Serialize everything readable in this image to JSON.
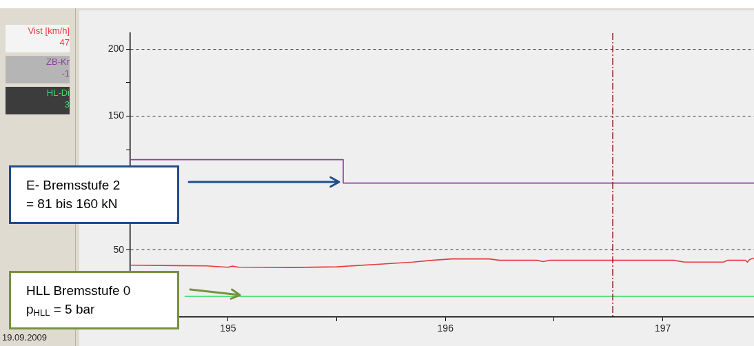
{
  "chart_data": {
    "type": "line",
    "xlim": [
      194.55,
      197.42
    ],
    "xticks": [
      195,
      {
        "value": 195.5,
        "label": null
      },
      196,
      {
        "value": 196.5,
        "label": null
      },
      197
    ],
    "ylim": [
      0,
      212
    ],
    "yticks": [
      {
        "value": 25,
        "label": null
      },
      50,
      {
        "value": 75,
        "label": null
      },
      {
        "value": 100,
        "label": null
      },
      {
        "value": 125,
        "label": null
      },
      150,
      {
        "value": 175,
        "label": null
      },
      200
    ],
    "grid": "y",
    "legend": "left",
    "series": [
      {
        "name": "Vist [km/h]",
        "color": "#e8383d",
        "x": [
          194.55,
          194.9,
          195.0,
          195.02,
          195.05,
          195.3,
          195.5,
          195.7,
          195.85,
          195.95,
          196.03,
          196.2,
          196.25,
          196.42,
          196.45,
          196.48,
          196.9,
          197.05,
          197.1,
          197.28,
          197.3,
          197.38,
          197.39,
          197.4,
          197.42
        ],
        "values": [
          38.7,
          38.2,
          37.2,
          38,
          37.2,
          37,
          37.5,
          39.5,
          41,
          42.5,
          43.4,
          43.4,
          42.4,
          42.4,
          41.4,
          42.4,
          42.4,
          42.4,
          41,
          41,
          42.4,
          42.4,
          41,
          43,
          44
        ]
      },
      {
        "name": "ZB-Kr",
        "type": "step",
        "color": "#8e3fa0",
        "x": [
          194.55,
          195.53,
          197.42
        ],
        "values": [
          117.5,
          100,
          100
        ]
      },
      {
        "name": "HL-Di",
        "color": "#3ddc6e",
        "x": [
          194.8,
          197.42
        ],
        "values": [
          15.5,
          15.5
        ]
      }
    ],
    "ref_lines": [
      {
        "axis": "x",
        "value": 196.77,
        "color": "#8b0000",
        "line_style": "dashed"
      }
    ],
    "annotations": [
      "E- Bremsstufe 2\n= 81 bis 160 kN",
      "HLL Bremsstufe 0\np$_{HLL}$ = 5 bar",
      "19.09.2009",
      "47",
      "-1",
      "3"
    ]
  }
}
